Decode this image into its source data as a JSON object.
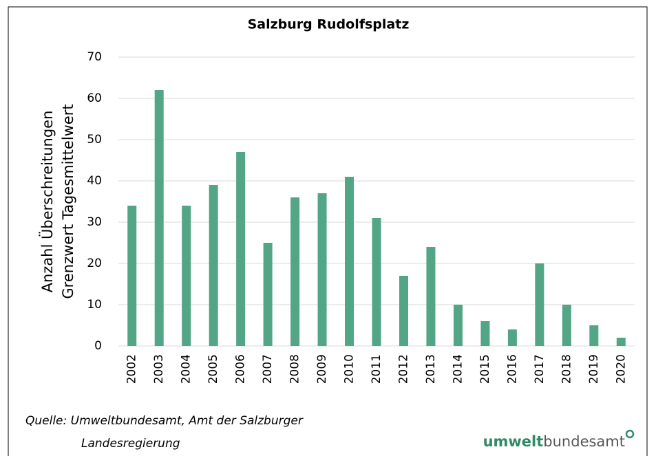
{
  "chart_data": {
    "type": "bar",
    "title": "Salzburg Rudolfsplatz",
    "ylabel": [
      "Anzahl Überschreitungen",
      "Grenzwert Tagesmittelwert"
    ],
    "categories": [
      "2002",
      "2003",
      "2004",
      "2005",
      "2006",
      "2007",
      "2008",
      "2009",
      "2010",
      "2011",
      "2012",
      "2013",
      "2014",
      "2015",
      "2016",
      "2017",
      "2018",
      "2019",
      "2020"
    ],
    "values": [
      34,
      62,
      34,
      39,
      47,
      25,
      36,
      37,
      41,
      31,
      17,
      24,
      10,
      6,
      4,
      20,
      10,
      5,
      2
    ],
    "color": "#52a585",
    "ylim": [
      0,
      70
    ],
    "yticks": [
      0,
      10,
      20,
      30,
      40,
      50,
      60,
      70
    ],
    "grid": true,
    "source": [
      "Quelle: Umweltbundesamt, Amt der Salzburger",
      "Landesregierung"
    ],
    "logo": {
      "bold": "umwelt",
      "regular": "bundesamt"
    }
  }
}
